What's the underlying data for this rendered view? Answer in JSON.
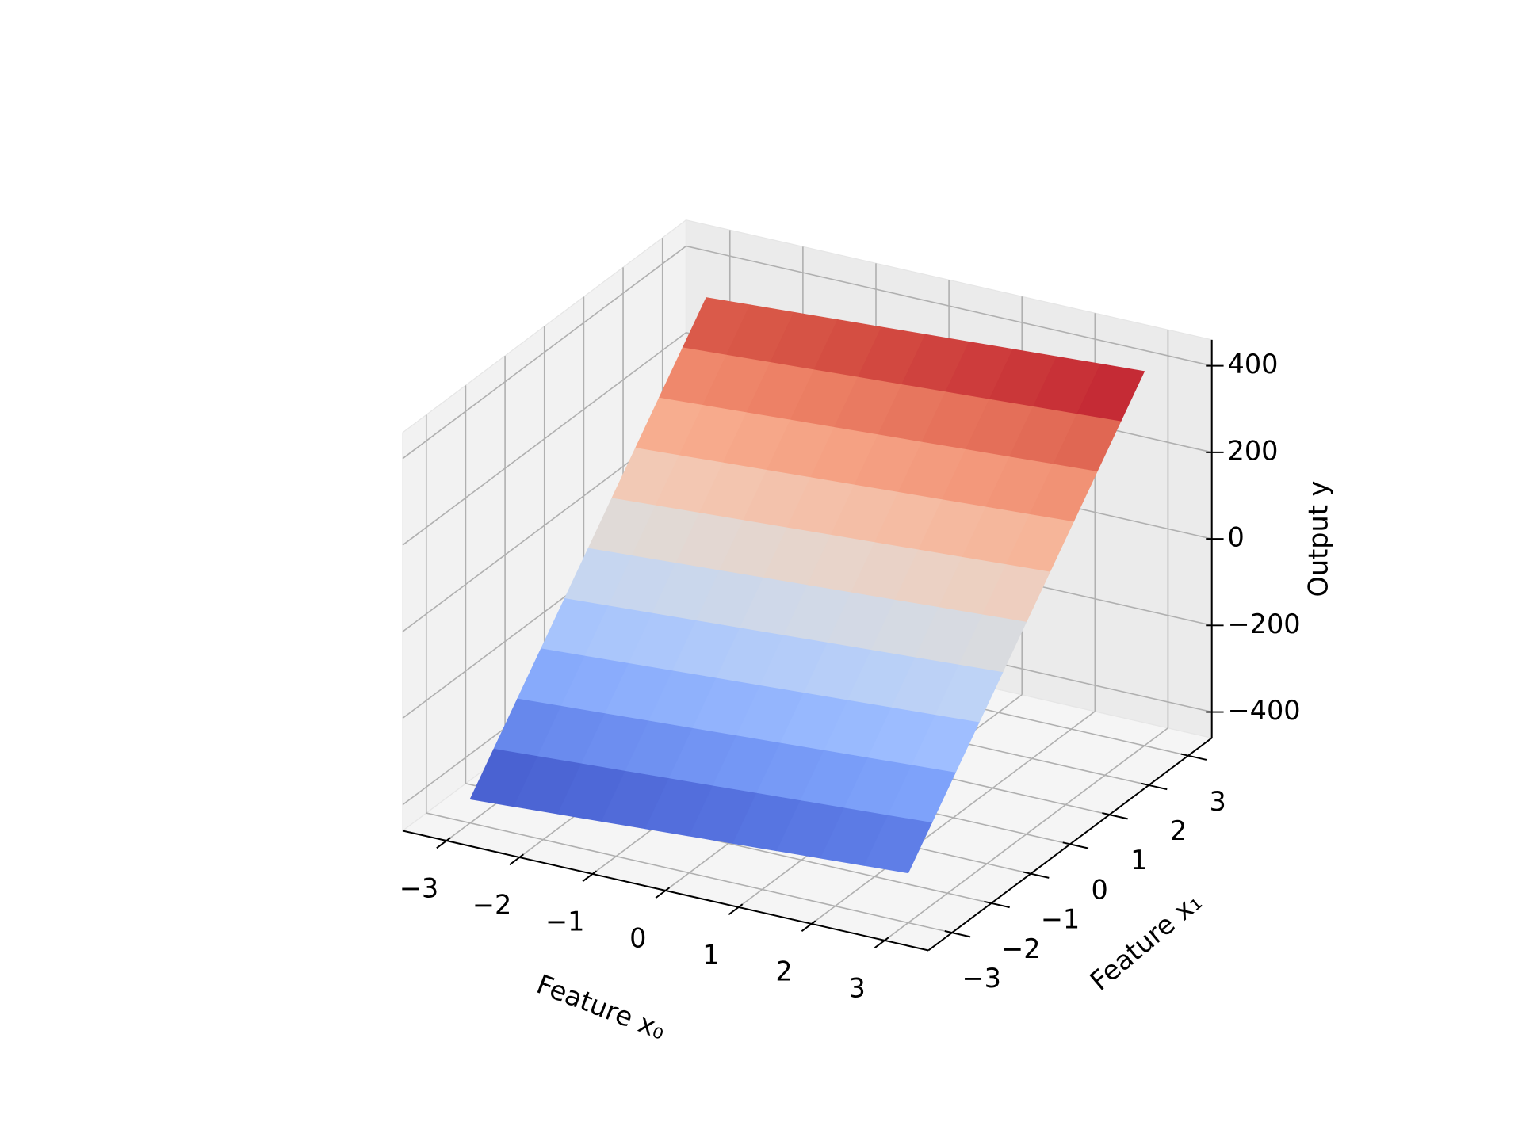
{
  "chart_data": {
    "type": "surface",
    "xlabel": "Feature x₀",
    "ylabel": "Feature x₁",
    "zlabel": "Output y",
    "x": [
      -3,
      -2.4,
      -1.8,
      -1.2,
      -0.6,
      0,
      0.6,
      1.2,
      1.8,
      2.4,
      3
    ],
    "y": [
      -3,
      -2.4,
      -1.8,
      -1.2,
      -0.6,
      0,
      0.6,
      1.2,
      1.8,
      2.4,
      3
    ],
    "z": [
      [
        -405,
        -399,
        -393,
        -387,
        -381,
        -375,
        -369,
        -363,
        -357,
        -351,
        -345
      ],
      [
        -330,
        -324,
        -318,
        -312,
        -306,
        -300,
        -294,
        -288,
        -282,
        -276,
        -270
      ],
      [
        -255,
        -249,
        -243,
        -237,
        -231,
        -225,
        -219,
        -213,
        -207,
        -201,
        -195
      ],
      [
        -180,
        -174,
        -168,
        -162,
        -156,
        -150,
        -144,
        -138,
        -132,
        -126,
        -120
      ],
      [
        -105,
        -99,
        -93,
        -87,
        -81,
        -75,
        -69,
        -63,
        -57,
        -51,
        -45
      ],
      [
        -30,
        -24,
        -18,
        -12,
        -6,
        0,
        6,
        12,
        18,
        24,
        30
      ],
      [
        45,
        51,
        57,
        63,
        69,
        75,
        81,
        87,
        93,
        99,
        105
      ],
      [
        120,
        126,
        132,
        138,
        144,
        150,
        156,
        162,
        168,
        174,
        180
      ],
      [
        195,
        201,
        207,
        213,
        219,
        225,
        231,
        237,
        243,
        249,
        255
      ],
      [
        270,
        276,
        282,
        288,
        294,
        300,
        306,
        312,
        318,
        324,
        330
      ],
      [
        345,
        351,
        357,
        363,
        369,
        375,
        381,
        387,
        393,
        399,
        405
      ]
    ],
    "xlim": [
      -3.6,
      3.6
    ],
    "ylim": [
      -3.6,
      3.6
    ],
    "zlim": [
      -460,
      460
    ],
    "xticks": [
      {
        "value": -3,
        "label": "−3"
      },
      {
        "value": -2,
        "label": "−2"
      },
      {
        "value": -1,
        "label": "−1"
      },
      0,
      1,
      2,
      3
    ],
    "yticks": [
      {
        "value": -3,
        "label": "−3"
      },
      {
        "value": -2,
        "label": "−2"
      },
      {
        "value": -1,
        "label": "−1"
      },
      0,
      1,
      2,
      3
    ],
    "zticks": [
      {
        "value": -400,
        "label": "−400"
      },
      {
        "value": -200,
        "label": "−200"
      },
      0,
      200,
      400
    ],
    "colormap": "coolwarm",
    "grid": true
  }
}
